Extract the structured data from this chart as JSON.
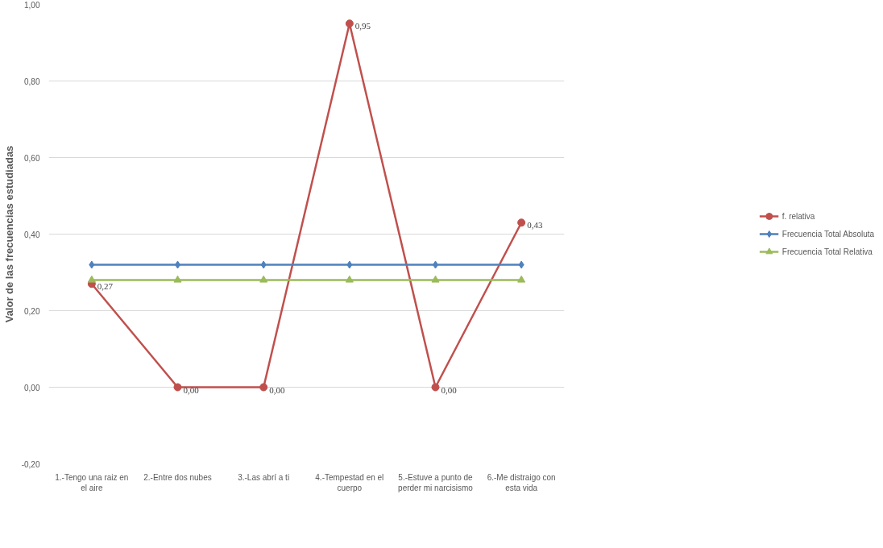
{
  "chart_data": {
    "type": "line",
    "ylabel": "Valor de las frecuencias estudiadas",
    "categories": [
      "1.-Tengo una raiz en el aire",
      "2.-Entre dos nubes",
      "3.-Las abrí a ti",
      "4.-Tempestad en el cuerpo",
      "5.-Estuve a punto de perder mi narcisismo",
      "6.-Me distraigo con esta vida"
    ],
    "series": [
      {
        "name": "f. relativa",
        "color": "#c0504d",
        "marker": "circle",
        "values": [
          0.27,
          0.0,
          0.0,
          0.95,
          0.0,
          0.43
        ],
        "value_labels": [
          "0,27",
          "0,00",
          "0,00",
          "0,95",
          "0,00",
          "0,43"
        ]
      },
      {
        "name": "Frecuencia Total Absoluta",
        "color": "#4f81bd",
        "marker": "diamond",
        "values": [
          0.32,
          0.32,
          0.32,
          0.32,
          0.32,
          0.32
        ]
      },
      {
        "name": "Frecuencia Total Relativa",
        "color": "#9bbb59",
        "marker": "triangle",
        "values": [
          0.28,
          0.28,
          0.28,
          0.28,
          0.28,
          0.28
        ]
      }
    ],
    "ylim": [
      -0.2,
      1.0
    ],
    "yticks": [
      {
        "value": -0.2,
        "label": "-0,20"
      },
      {
        "value": 0.0,
        "label": "0,00"
      },
      {
        "value": 0.2,
        "label": "0,20"
      },
      {
        "value": 0.4,
        "label": "0,40"
      },
      {
        "value": 0.6,
        "label": "0,60"
      },
      {
        "value": 0.8,
        "label": "0,80"
      },
      {
        "value": 1.0,
        "label": "1,00"
      }
    ],
    "grid": "y",
    "legend": "right",
    "line_style": "solid"
  }
}
